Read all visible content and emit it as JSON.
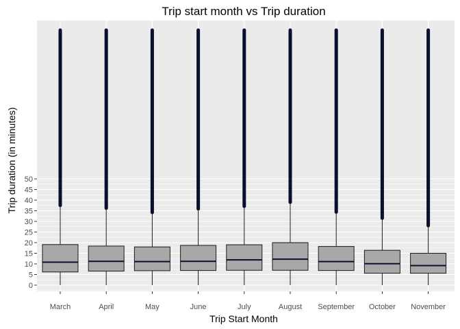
{
  "chart_data": {
    "type": "boxplot",
    "title": "Trip start month vs Trip duration",
    "xlabel": "Trip Start Month",
    "ylabel": "Trip duration (in minutes)",
    "categories": [
      "March",
      "April",
      "May",
      "June",
      "July",
      "August",
      "September",
      "October",
      "November"
    ],
    "boxes": [
      {
        "q1": 6.2,
        "median": 10.8,
        "q3": 19.1,
        "whisker_low": 0,
        "whisker_high": 37.5,
        "outlier_max": 120
      },
      {
        "q1": 6.6,
        "median": 11.2,
        "q3": 18.4,
        "whisker_low": 0,
        "whisker_high": 36.2,
        "outlier_max": 120
      },
      {
        "q1": 6.8,
        "median": 11.1,
        "q3": 18.0,
        "whisker_low": 0,
        "whisker_high": 34.2,
        "outlier_max": 120
      },
      {
        "q1": 6.9,
        "median": 11.2,
        "q3": 18.7,
        "whisker_low": 0,
        "whisker_high": 35.9,
        "outlier_max": 120
      },
      {
        "q1": 7.0,
        "median": 11.9,
        "q3": 19.0,
        "whisker_low": 0,
        "whisker_high": 37.1,
        "outlier_max": 120
      },
      {
        "q1": 7.0,
        "median": 12.2,
        "q3": 20.0,
        "whisker_low": 0,
        "whisker_high": 39.0,
        "outlier_max": 120
      },
      {
        "q1": 6.9,
        "median": 11.1,
        "q3": 18.2,
        "whisker_low": 0,
        "whisker_high": 34.4,
        "outlier_max": 120
      },
      {
        "q1": 5.6,
        "median": 10.1,
        "q3": 16.4,
        "whisker_low": 0,
        "whisker_high": 31.5,
        "outlier_max": 120
      },
      {
        "q1": 5.6,
        "median": 9.2,
        "q3": 15.0,
        "whisker_low": 0,
        "whisker_high": 28.0,
        "outlier_max": 120
      }
    ],
    "yticks": [
      0,
      5,
      10,
      15,
      20,
      25,
      30,
      35,
      40,
      45,
      50
    ],
    "ylim": [
      -5,
      120
    ],
    "grid": true,
    "legend": "none",
    "colors": {
      "panel": "#ebebeb",
      "grid": "#ffffff",
      "box_fill": "#a8a8a8",
      "box_stroke": "#1a1a1a",
      "median": "#0b0f2e",
      "outlier": "#0b0f2e"
    }
  }
}
